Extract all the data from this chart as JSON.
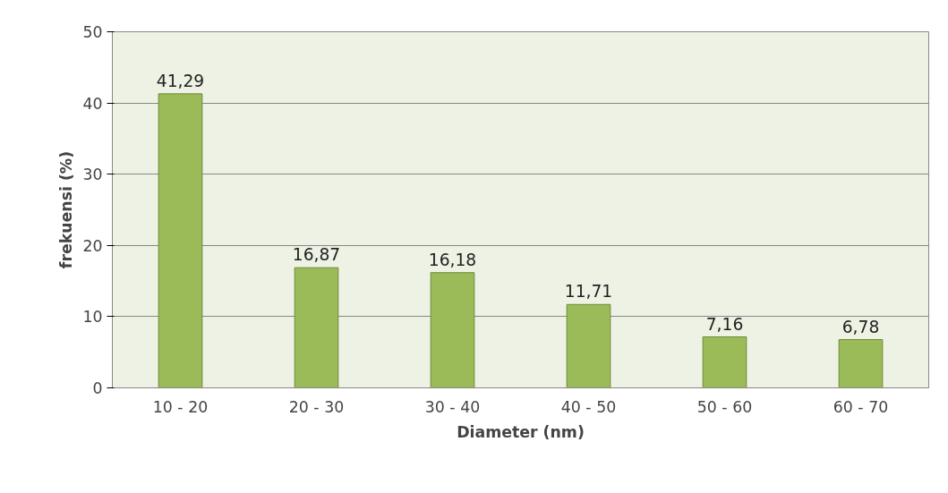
{
  "chart_data": {
    "type": "bar",
    "xlabel": "Diameter (nm)",
    "ylabel": "frekuensi (%)",
    "categories": [
      "10 - 20",
      "20 - 30",
      "30 - 40",
      "40 - 50",
      "50 - 60",
      "60 - 70"
    ],
    "values": [
      41.29,
      16.87,
      16.18,
      11.71,
      7.16,
      6.78
    ],
    "value_labels": [
      "41,29",
      "16,87",
      "16,18",
      "11,71",
      "7,16",
      "6,78"
    ],
    "color": "#9bbb59",
    "ylim": [
      0,
      50
    ],
    "yticks": [
      0,
      10,
      20,
      30,
      40,
      50
    ],
    "grid": "y"
  }
}
